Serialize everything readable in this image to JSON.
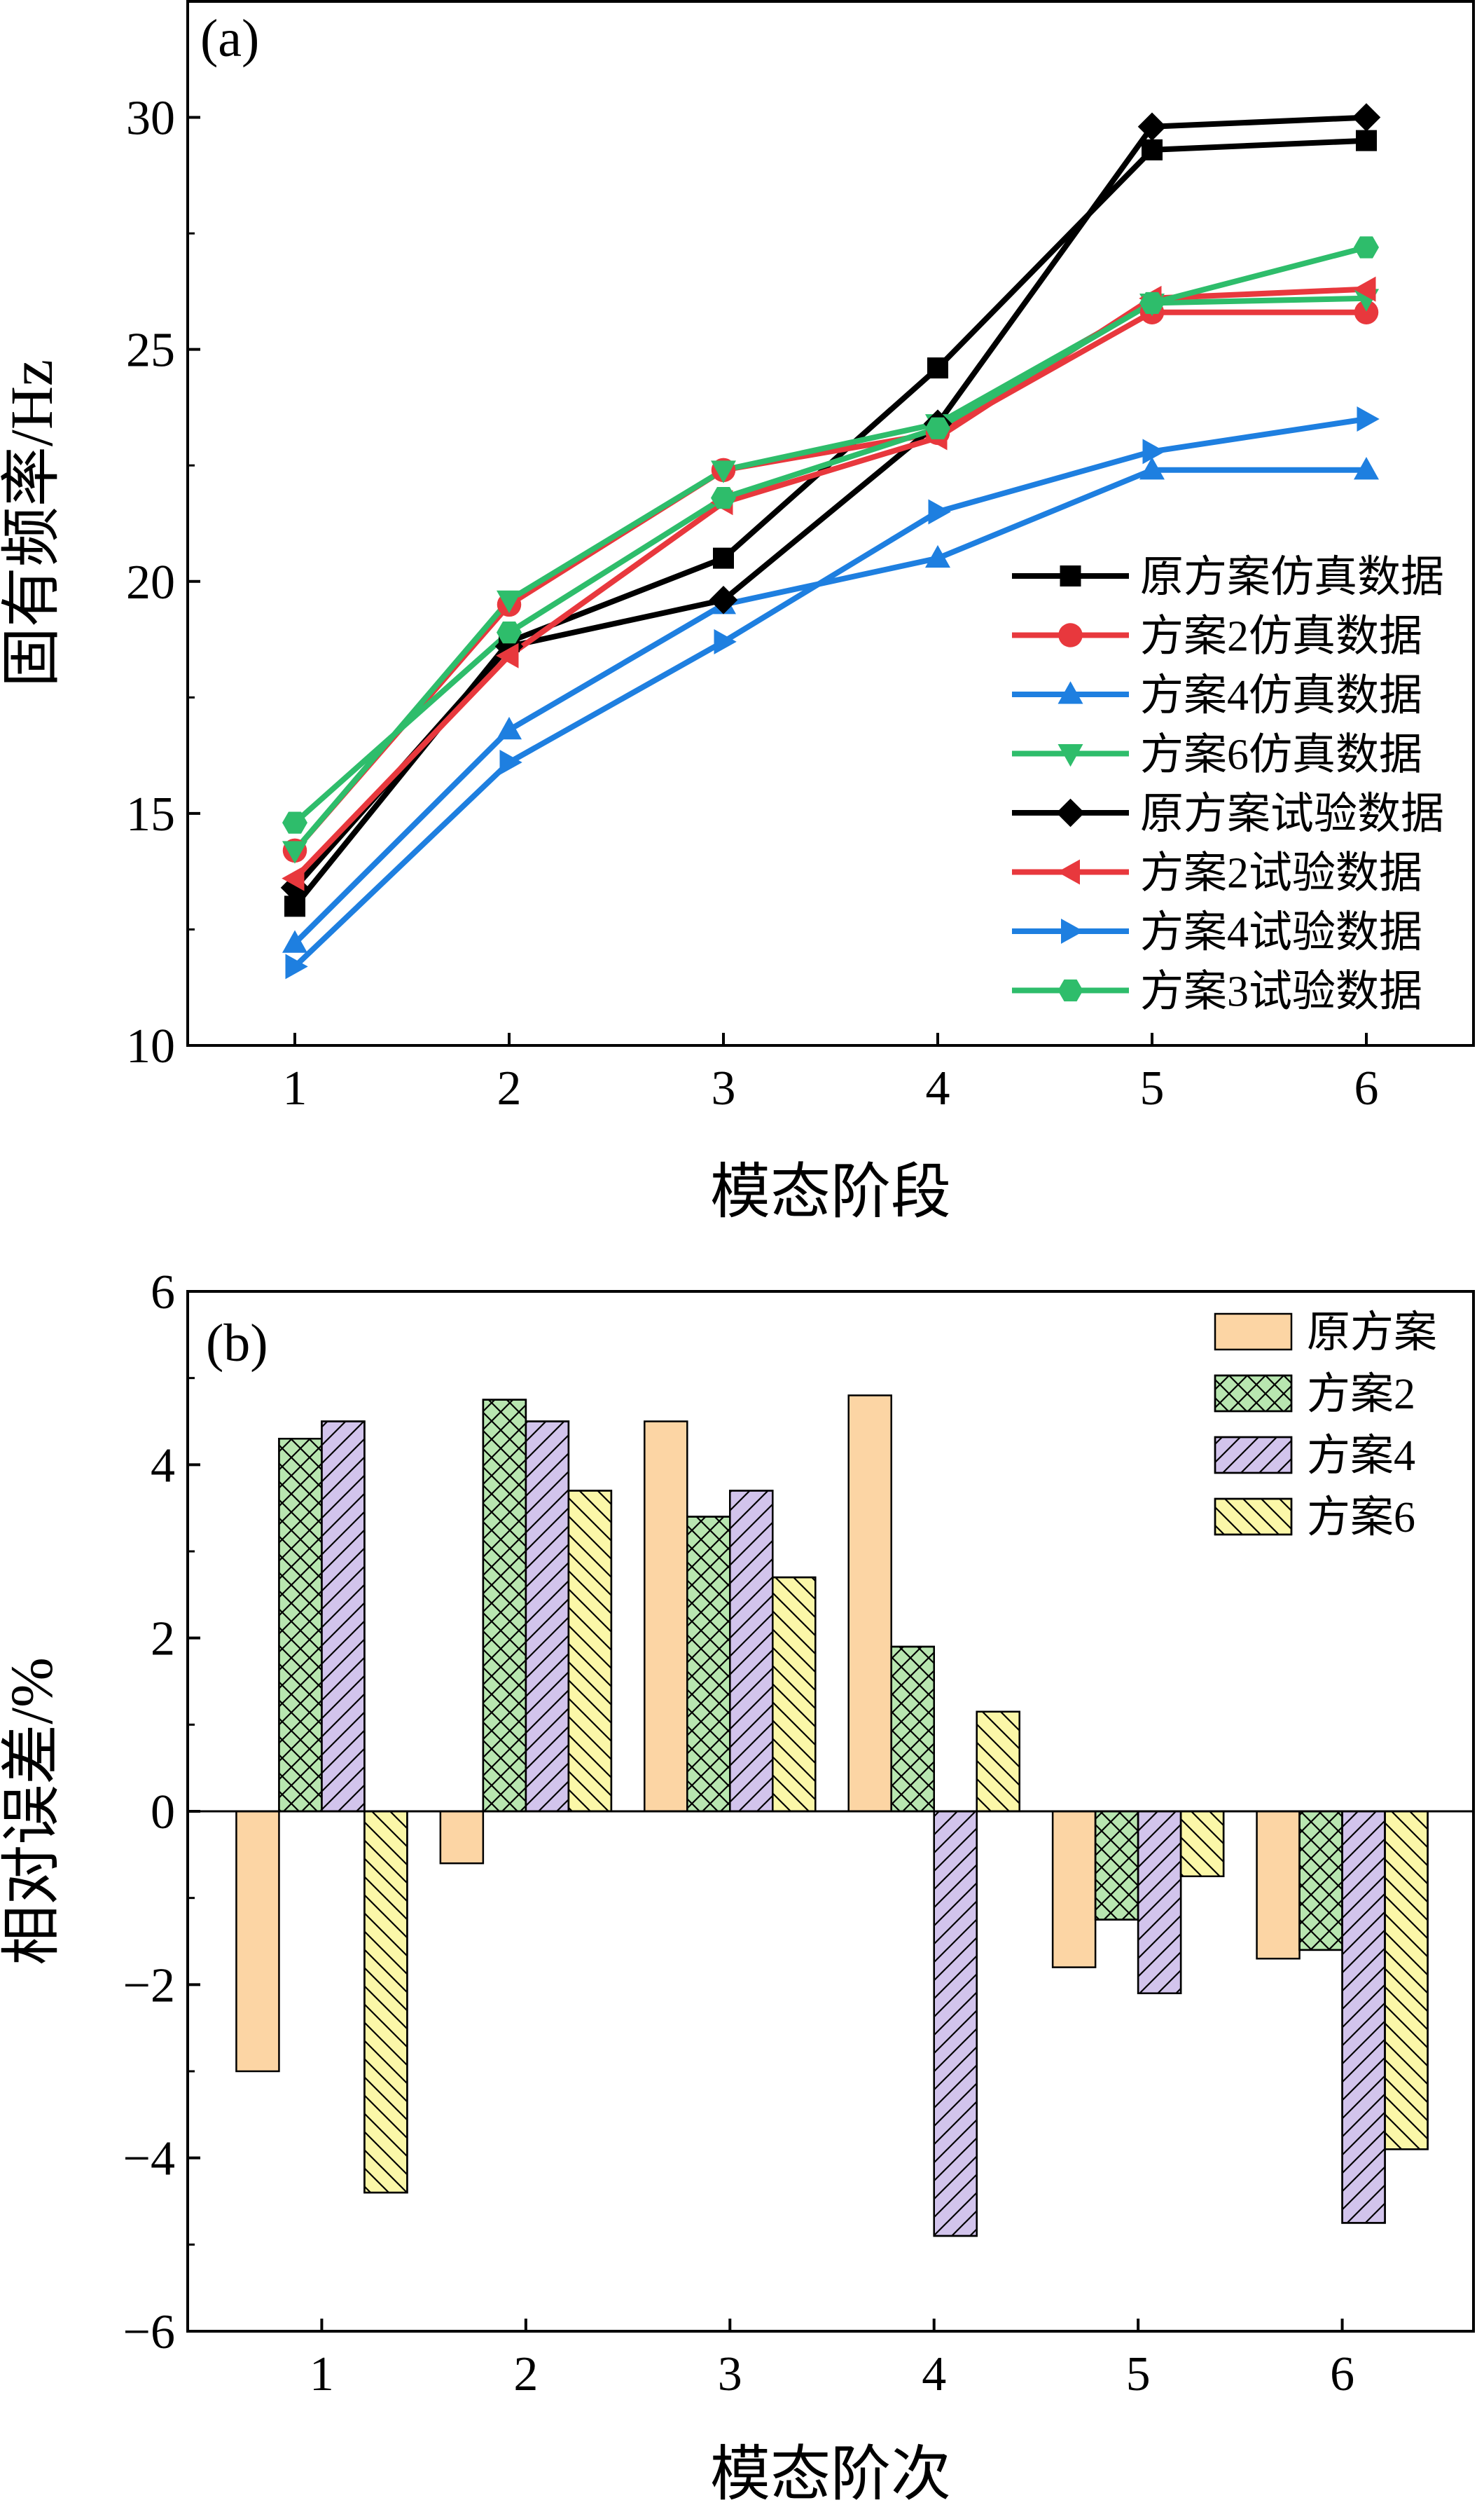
{
  "chart_data": [
    {
      "type": "line",
      "panel_label": "(a)",
      "xlabel": "模态阶段",
      "ylabel": "固有频率/Hz",
      "x": [
        1,
        2,
        3,
        4,
        5,
        6
      ],
      "xlim": [
        0.5,
        6.5
      ],
      "ylim": [
        10,
        32.5
      ],
      "xticks": [
        "1",
        "2",
        "3",
        "4",
        "5",
        "6"
      ],
      "yticks": [
        10,
        15,
        20,
        25,
        30
      ],
      "legend_position": "lower-right",
      "series": [
        {
          "name": "原方案仿真数据",
          "color": "#000000",
          "marker": "square",
          "values": [
            13.0,
            18.7,
            20.5,
            24.6,
            29.3,
            29.5
          ]
        },
        {
          "name": "方案2仿真数据",
          "color": "#e8383d",
          "marker": "circle",
          "values": [
            14.2,
            19.5,
            22.4,
            23.2,
            25.8,
            25.8
          ]
        },
        {
          "name": "方案4仿真数据",
          "color": "#1e7fe0",
          "marker": "triangle-up",
          "values": [
            12.2,
            16.8,
            19.5,
            20.5,
            22.4,
            22.4
          ]
        },
        {
          "name": "方案6仿真数据",
          "color": "#2ebd6b",
          "marker": "triangle-down",
          "values": [
            14.2,
            19.6,
            22.4,
            23.4,
            26.0,
            26.1
          ]
        },
        {
          "name": "原方案试验数据",
          "color": "#000000",
          "marker": "diamond",
          "values": [
            13.4,
            18.6,
            19.6,
            23.4,
            29.8,
            30.0
          ]
        },
        {
          "name": "方案2试验数据",
          "color": "#e8383d",
          "marker": "triangle-left",
          "values": [
            13.6,
            18.4,
            21.7,
            23.1,
            26.1,
            26.3
          ]
        },
        {
          "name": "方案4试验数据",
          "color": "#1e7fe0",
          "marker": "triangle-right",
          "values": [
            11.7,
            16.1,
            18.7,
            21.5,
            22.8,
            23.5
          ]
        },
        {
          "name": "方案3试验数据",
          "color": "#2ebd6b",
          "marker": "hexagon",
          "values": [
            14.8,
            18.9,
            21.8,
            23.3,
            26.0,
            27.2
          ]
        }
      ]
    },
    {
      "type": "bar",
      "panel_label": "(b)",
      "xlabel": "模态阶次",
      "ylabel": "相对误差/%",
      "categories": [
        "1",
        "2",
        "3",
        "4",
        "5",
        "6"
      ],
      "ylim": [
        -6,
        6
      ],
      "yticks": [
        -6,
        -4,
        -2,
        0,
        2,
        4,
        6
      ],
      "legend_position": "top-right",
      "series": [
        {
          "name": "原方案",
          "fill": "#fcd5a4",
          "hatch": "none",
          "values": [
            -3.0,
            -0.6,
            4.5,
            4.8,
            -1.8,
            -1.7
          ]
        },
        {
          "name": "方案2",
          "fill": "#b8e6b0",
          "hatch": "crosshatch",
          "values": [
            4.3,
            4.75,
            3.4,
            1.9,
            -1.25,
            -1.6
          ]
        },
        {
          "name": "方案4",
          "fill": "#d2c4ec",
          "hatch": "forward",
          "values": [
            4.5,
            4.5,
            3.7,
            -4.9,
            -2.1,
            -4.75
          ]
        },
        {
          "name": "方案6",
          "fill": "#fbf7a8",
          "hatch": "backward",
          "values": [
            -4.4,
            3.7,
            2.7,
            1.15,
            -0.75,
            -3.9
          ]
        }
      ]
    }
  ]
}
